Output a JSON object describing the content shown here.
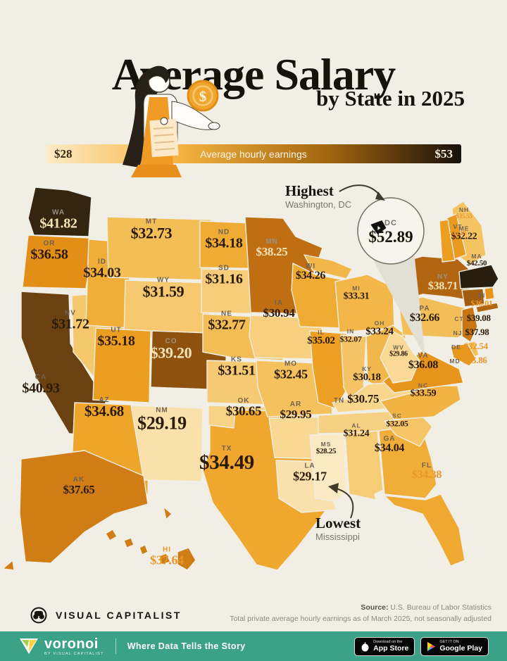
{
  "header": {
    "title": "Average Salary",
    "subtitle": "by State in 2025"
  },
  "legend": {
    "min": "$28",
    "label": "Average hourly earnings",
    "max": "$53"
  },
  "colors": {
    "background": "#F0EEE5",
    "bottom_bar_green": "#3CA287",
    "legend_gradient": [
      "#FDECC8",
      "#F6B33F",
      "#A2650F",
      "#17100A"
    ],
    "orange_label": "#E8982B"
  },
  "annotations": {
    "highest": {
      "title": "Highest",
      "subtitle": "Washington, DC"
    },
    "lowest": {
      "title": "Lowest",
      "subtitle": "Mississippi"
    }
  },
  "dc": {
    "abbr": "DC",
    "value": "$52.89"
  },
  "map": {
    "states": [
      {
        "abbr": "WA",
        "value": "$41.82",
        "fill": "#33250F"
      },
      {
        "abbr": "OR",
        "value": "$36.58",
        "fill": "#E38E17"
      },
      {
        "abbr": "CA",
        "value": "$40.93",
        "fill": "#6B4111"
      },
      {
        "abbr": "NV",
        "value": "$31.72",
        "fill": "#F5C86D"
      },
      {
        "abbr": "ID",
        "value": "$34.03",
        "fill": "#F0AD38"
      },
      {
        "abbr": "MT",
        "value": "$32.73",
        "fill": "#F3BE56"
      },
      {
        "abbr": "WY",
        "value": "$31.59",
        "fill": "#F6C970"
      },
      {
        "abbr": "UT",
        "value": "$35.18",
        "fill": "#EC9E21"
      },
      {
        "abbr": "CO",
        "value": "$39.20",
        "fill": "#8F520E"
      },
      {
        "abbr": "AZ",
        "value": "$34.68",
        "fill": "#EEA529"
      },
      {
        "abbr": "NM",
        "value": "$29.19",
        "fill": "#FAE0AB"
      },
      {
        "abbr": "ND",
        "value": "$34.18",
        "fill": "#F0AB35"
      },
      {
        "abbr": "SD",
        "value": "$31.16",
        "fill": "#F7CD7A"
      },
      {
        "abbr": "NE",
        "value": "$32.77",
        "fill": "#F3BD55"
      },
      {
        "abbr": "KS",
        "value": "$31.51",
        "fill": "#F6CA72"
      },
      {
        "abbr": "OK",
        "value": "$30.65",
        "fill": "#F8D285"
      },
      {
        "abbr": "TX",
        "value": "$34.49",
        "fill": "#EFA72D"
      },
      {
        "abbr": "MN",
        "value": "$38.25",
        "fill": "#BF6E12"
      },
      {
        "abbr": "IA",
        "value": "$30.94",
        "fill": "#F7CF7E"
      },
      {
        "abbr": "MO",
        "value": "$32.45",
        "fill": "#F4C15D"
      },
      {
        "abbr": "AR",
        "value": "$29.95",
        "fill": "#F9D893"
      },
      {
        "abbr": "LA",
        "value": "$29.17",
        "fill": "#FAE0AC"
      },
      {
        "abbr": "WI",
        "value": "$34.26",
        "fill": "#EFAA32"
      },
      {
        "abbr": "MI",
        "value": "$33.31",
        "fill": "#F2B649"
      },
      {
        "abbr": "IL",
        "value": "$35.02",
        "fill": "#EDA023"
      },
      {
        "abbr": "IN",
        "value": "$32.07",
        "fill": "#F5C466"
      },
      {
        "abbr": "OH",
        "value": "$33.24",
        "fill": "#F2B74B"
      },
      {
        "abbr": "KY",
        "value": "$30.18",
        "fill": "#F8D68C"
      },
      {
        "abbr": "TN",
        "value": "$30.75",
        "fill": "#F7D183"
      },
      {
        "abbr": "MS",
        "value": "$28.25",
        "fill": "#FBE9C3"
      },
      {
        "abbr": "AL",
        "value": "$31.24",
        "fill": "#F6CC77"
      },
      {
        "abbr": "GA",
        "value": "$34.04",
        "fill": "#F0AD38"
      },
      {
        "abbr": "FL",
        "value": "$34.38",
        "fill": "#EFA830"
      },
      {
        "abbr": "SC",
        "value": "$32.05",
        "fill": "#F5C566"
      },
      {
        "abbr": "NC",
        "value": "$33.59",
        "fill": "#F1B343"
      },
      {
        "abbr": "VA",
        "value": "$36.08",
        "fill": "#E7941A"
      },
      {
        "abbr": "WV",
        "value": "$29.86",
        "fill": "#F9D995"
      },
      {
        "abbr": "PA",
        "value": "$32.66",
        "fill": "#F3BE58"
      },
      {
        "abbr": "NY",
        "value": "$38.71",
        "fill": "#B26511"
      },
      {
        "abbr": "ME",
        "value": "$32.22",
        "fill": "#F4C362"
      },
      {
        "abbr": "NH",
        "value": "$35.55",
        "fill": "#EA9A1E"
      },
      {
        "abbr": "VT",
        "value": "$35.18",
        "fill": "#EC9E21"
      },
      {
        "abbr": "MA",
        "value": "$42.50",
        "fill": "#281E10"
      },
      {
        "abbr": "RI",
        "value": "$36.01",
        "fill": "#E7941B"
      },
      {
        "abbr": "CT",
        "value": "$39.08",
        "fill": "#A25C0F"
      },
      {
        "abbr": "NJ",
        "value": "$37.98",
        "fill": "#C87513"
      },
      {
        "abbr": "DE",
        "value": "$32.54",
        "fill": "#F4C05B"
      },
      {
        "abbr": "MD",
        "value": "$35.86",
        "fill": "#E8961C"
      },
      {
        "abbr": "AK",
        "value": "$37.65",
        "fill": "#D07D15"
      },
      {
        "abbr": "HI",
        "value": "$37.64",
        "fill": "#D07D15"
      }
    ]
  },
  "footer": {
    "brand": "VISUAL CAPITALIST",
    "source_label": "Source:",
    "source_text": "U.S. Bureau of Labor Statistics",
    "note": "Total private average hourly earnings as of March 2025, not seasonally adjusted"
  },
  "bottom_bar": {
    "logo_text": "voronoi",
    "logo_sub": "BY VISUAL CAPITALIST",
    "slogan": "Where Data Tells the Story",
    "appstore": {
      "line1": "Download on the",
      "line2": "App Store"
    },
    "googleplay": {
      "line1": "GET IT ON",
      "line2": "Google Play"
    }
  },
  "chart_data": {
    "type": "heatmap",
    "title": "Average Salary by State in 2025",
    "metric": "Average hourly earnings (USD)",
    "scale": {
      "min": 28,
      "max": 53
    },
    "legend_position": "top",
    "categories": [
      "WA",
      "OR",
      "CA",
      "NV",
      "ID",
      "MT",
      "WY",
      "UT",
      "CO",
      "AZ",
      "NM",
      "ND",
      "SD",
      "NE",
      "KS",
      "OK",
      "TX",
      "MN",
      "IA",
      "MO",
      "AR",
      "LA",
      "WI",
      "MI",
      "IL",
      "IN",
      "OH",
      "KY",
      "TN",
      "MS",
      "AL",
      "GA",
      "FL",
      "SC",
      "NC",
      "VA",
      "WV",
      "PA",
      "NY",
      "ME",
      "NH",
      "VT",
      "MA",
      "RI",
      "CT",
      "NJ",
      "DE",
      "MD",
      "AK",
      "HI",
      "DC"
    ],
    "values": [
      41.82,
      36.58,
      40.93,
      31.72,
      34.03,
      32.73,
      31.59,
      35.18,
      39.2,
      34.68,
      29.19,
      34.18,
      31.16,
      32.77,
      31.51,
      30.65,
      34.49,
      38.25,
      30.94,
      32.45,
      29.95,
      29.17,
      34.26,
      33.31,
      35.02,
      32.07,
      33.24,
      30.18,
      30.75,
      28.25,
      31.24,
      34.04,
      34.38,
      32.05,
      33.59,
      36.08,
      29.86,
      32.66,
      38.71,
      32.22,
      35.55,
      35.18,
      42.5,
      36.01,
      39.08,
      37.98,
      32.54,
      35.86,
      37.65,
      37.64,
      52.89
    ],
    "annotations": {
      "highest": {
        "label": "Washington, DC",
        "value": 52.89
      },
      "lowest": {
        "label": "Mississippi",
        "value": 28.25
      }
    }
  }
}
